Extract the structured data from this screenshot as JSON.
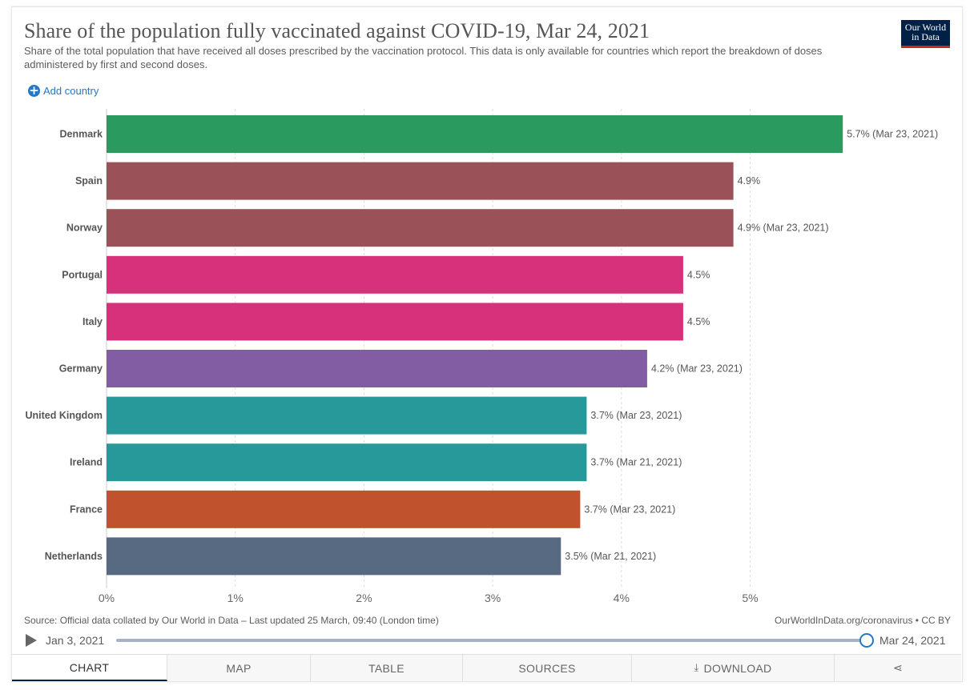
{
  "header": {
    "title": "Share of the population fully vaccinated against COVID-19, Mar 24, 2021",
    "subtitle": "Share of the total population that have received all doses prescribed by the vaccination protocol. This data is only available for countries which report the breakdown of doses administered by first and second doses.",
    "logo_line1": "Our World",
    "logo_line2": "in Data"
  },
  "controls": {
    "add_country_label": "Add country"
  },
  "chart_data": {
    "type": "bar",
    "orientation": "horizontal",
    "title": "Share of the population fully vaccinated against COVID-19, Mar 24, 2021",
    "categories": [
      "Denmark",
      "Spain",
      "Norway",
      "Portugal",
      "Italy",
      "Germany",
      "United Kingdom",
      "Ireland",
      "France",
      "Netherlands"
    ],
    "values": [
      5.72,
      4.87,
      4.87,
      4.48,
      4.48,
      4.2,
      3.73,
      3.73,
      3.68,
      3.53
    ],
    "value_labels": [
      "5.7% (Mar 23, 2021)",
      "4.9%",
      "4.9% (Mar 23, 2021)",
      "4.5%",
      "4.5%",
      "4.2% (Mar 23, 2021)",
      "3.7% (Mar 23, 2021)",
      "3.7% (Mar 21, 2021)",
      "3.7% (Mar 23, 2021)",
      "3.5% (Mar 21, 2021)"
    ],
    "colors": [
      "#2a9a5e",
      "#9a5158",
      "#9a5158",
      "#d6317a",
      "#d6317a",
      "#825da3",
      "#28999a",
      "#28999a",
      "#c0532d",
      "#586a82"
    ],
    "xlim": [
      0,
      5.75
    ],
    "x_ticks": [
      0,
      1,
      2,
      3,
      4,
      5
    ],
    "x_tick_labels": [
      "0%",
      "1%",
      "2%",
      "3%",
      "4%",
      "5%"
    ],
    "grid": "vertical dashed",
    "xlabel": "",
    "ylabel": ""
  },
  "footer": {
    "source": "Source: Official data collated by Our World in Data – Last updated 25 March, 09:40 (London time)",
    "credit": "OurWorldInData.org/coronavirus • CC BY"
  },
  "timeline": {
    "start_label": "Jan 3, 2021",
    "end_label": "Mar 24, 2021",
    "position": 1.0
  },
  "tabs": {
    "chart": "CHART",
    "map": "MAP",
    "table": "TABLE",
    "sources": "SOURCES",
    "download": "DOWNLOAD"
  }
}
